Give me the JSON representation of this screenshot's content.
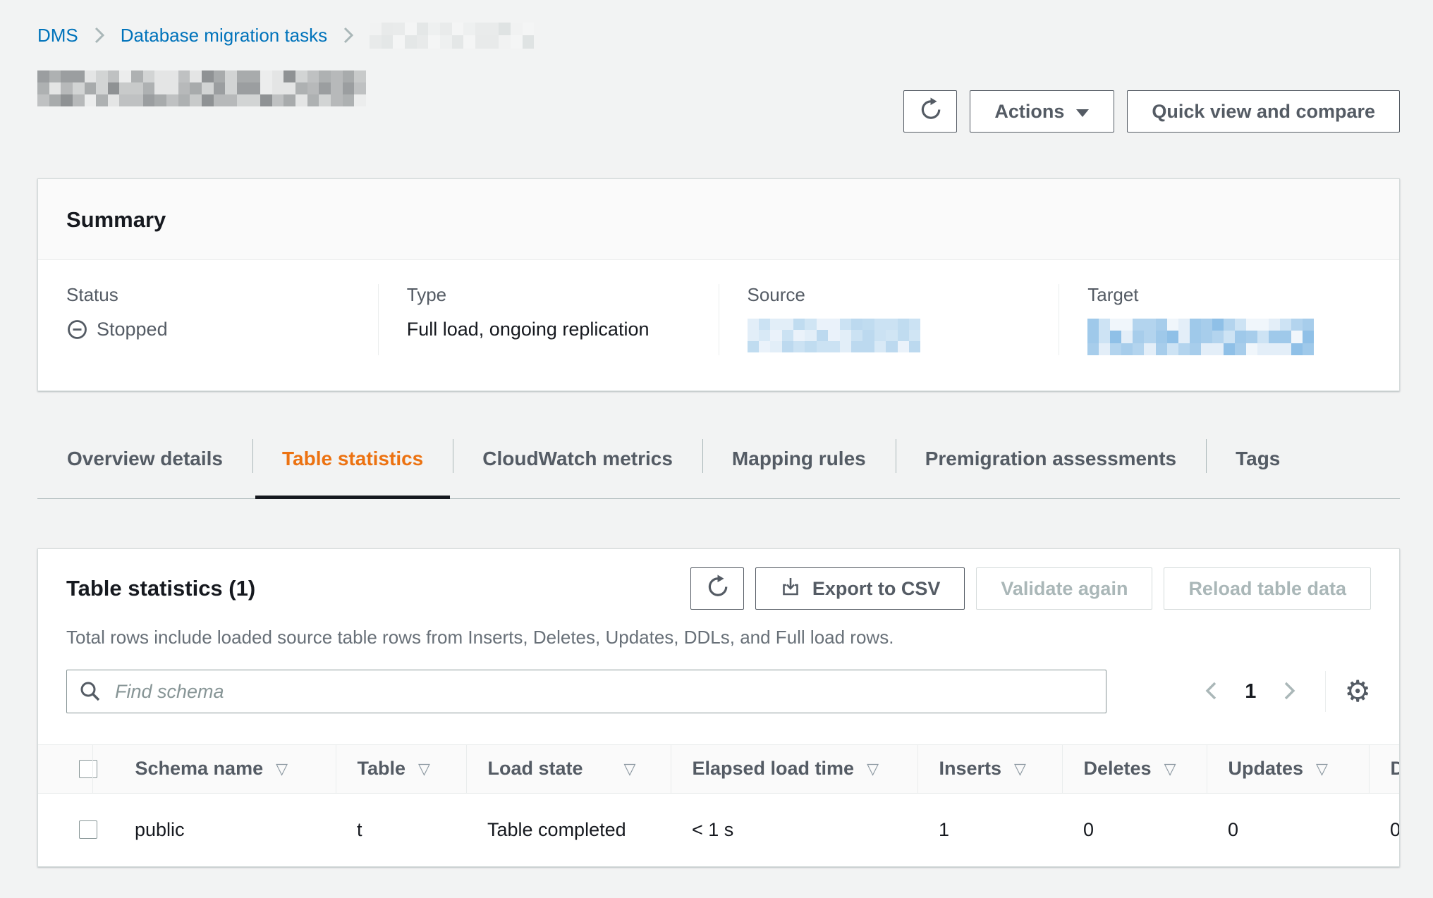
{
  "breadcrumb": {
    "items": [
      {
        "label": "DMS"
      },
      {
        "label": "Database migration tasks"
      }
    ]
  },
  "toolbar": {
    "actions_label": "Actions",
    "quick_view_label": "Quick view and compare"
  },
  "summary": {
    "title": "Summary",
    "fields": [
      {
        "label": "Status",
        "value": "Stopped"
      },
      {
        "label": "Type",
        "value": "Full load, ongoing replication"
      },
      {
        "label": "Source",
        "value": ""
      },
      {
        "label": "Target",
        "value": ""
      }
    ]
  },
  "tabs": [
    {
      "label": "Overview details",
      "active": false
    },
    {
      "label": "Table statistics",
      "active": true
    },
    {
      "label": "CloudWatch metrics",
      "active": false
    },
    {
      "label": "Mapping rules",
      "active": false
    },
    {
      "label": "Premigration assessments",
      "active": false
    },
    {
      "label": "Tags",
      "active": false
    }
  ],
  "table_panel": {
    "title": "Table statistics (1)",
    "description": "Total rows include loaded source table rows from Inserts, Deletes, Updates, DDLs, and Full load rows.",
    "export_csv_label": "Export to CSV",
    "validate_again_label": "Validate again",
    "reload_table_label": "Reload table data",
    "search_placeholder": "Find schema",
    "pagination": {
      "current_page": "1"
    }
  },
  "table": {
    "headers": [
      "Schema name",
      "Table",
      "Load state",
      "Elapsed load time",
      "Inserts",
      "Deletes",
      "Updates",
      "D"
    ],
    "rows": [
      {
        "schema": "public",
        "table": "t",
        "load_state": "Table completed",
        "elapsed": "< 1 s",
        "inserts": "1",
        "deletes": "0",
        "updates": "0",
        "last": "0"
      }
    ]
  },
  "colors": {
    "link_blue": "#0073bb",
    "active_tab_orange": "#ec7211",
    "text_dark": "#16191f",
    "text_gray": "#545b64",
    "disabled_gray": "#aab7b8",
    "page_background": "#f2f3f3"
  }
}
